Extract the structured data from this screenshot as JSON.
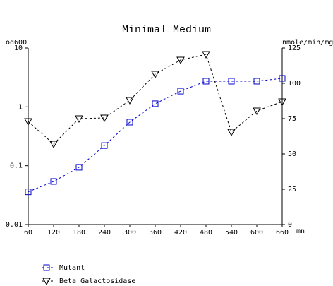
{
  "chart_data": {
    "type": "line",
    "title": "Minimal Medium",
    "ylabel": "od600",
    "y2label": "nmole/min/mg",
    "xlabel": "mn",
    "x": [
      60,
      120,
      180,
      240,
      300,
      360,
      420,
      480,
      540,
      600,
      660
    ],
    "xlim": [
      60,
      660
    ],
    "xticks": [
      60,
      120,
      180,
      240,
      300,
      360,
      420,
      480,
      540,
      600,
      660
    ],
    "ylim": [
      0.01,
      10
    ],
    "yticks": [
      0.01,
      0.1,
      1,
      10
    ],
    "ylog": true,
    "y2lim": [
      0,
      125
    ],
    "y2ticks": [
      0,
      25,
      50,
      75,
      100,
      125
    ],
    "series": [
      {
        "name": "Mutant",
        "color": "#0000cc",
        "marker": "square",
        "axis": "y",
        "values": [
          0.036,
          0.054,
          0.094,
          0.22,
          0.55,
          1.13,
          1.85,
          2.73,
          2.73,
          2.73,
          3.05
        ]
      },
      {
        "name": "Beta Galactosidase",
        "color": "#000000",
        "marker": "triangle-down",
        "axis": "y2",
        "values": [
          73,
          57,
          75,
          75.5,
          88,
          106.5,
          116.5,
          120.5,
          65.5,
          80.5,
          87
        ]
      }
    ]
  }
}
